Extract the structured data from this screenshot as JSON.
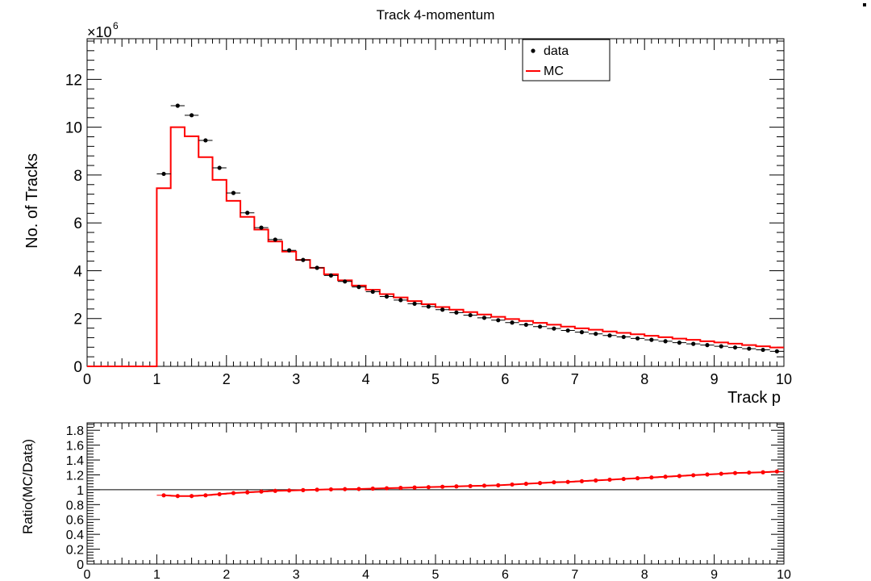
{
  "chart_data": [
    {
      "type": "histogram",
      "title": "Track 4-momentum",
      "xlabel": "Track p",
      "ylabel": "No. of Tracks",
      "y_multiplier_label": "×10",
      "y_multiplier_exponent": "6",
      "xlim": [
        0,
        10
      ],
      "ylim": [
        0,
        13.7
      ],
      "y_units": "millions",
      "x_ticks": [
        "0",
        "1",
        "2",
        "3",
        "4",
        "5",
        "6",
        "7",
        "8",
        "9",
        "10"
      ],
      "y_ticks": [
        "0",
        "2",
        "4",
        "6",
        "8",
        "10",
        "12"
      ],
      "y_tick_values": [
        0,
        2,
        4,
        6,
        8,
        10,
        12
      ],
      "legend": {
        "position": "top-right",
        "entries": [
          "data",
          "MC"
        ]
      },
      "bin_width": 0.2,
      "bin_edges_start": 0,
      "data": {
        "name": "data",
        "color": "#000000",
        "x": [
          1.1,
          1.3,
          1.5,
          1.7,
          1.9,
          2.1,
          2.3,
          2.5,
          2.7,
          2.9,
          3.1,
          3.3,
          3.5,
          3.7,
          3.9,
          4.1,
          4.3,
          4.5,
          4.7,
          4.9,
          5.1,
          5.3,
          5.5,
          5.7,
          5.9,
          6.1,
          6.3,
          6.5,
          6.7,
          6.9,
          7.1,
          7.3,
          7.5,
          7.7,
          7.9,
          8.1,
          8.3,
          8.5,
          8.7,
          8.9,
          9.1,
          9.3,
          9.5,
          9.7,
          9.9
        ],
        "y": [
          8.05,
          10.9,
          10.5,
          9.45,
          8.3,
          7.25,
          6.42,
          5.8,
          5.3,
          4.85,
          4.45,
          4.12,
          3.8,
          3.55,
          3.32,
          3.12,
          2.92,
          2.77,
          2.62,
          2.5,
          2.37,
          2.25,
          2.14,
          2.03,
          1.93,
          1.83,
          1.74,
          1.66,
          1.58,
          1.5,
          1.43,
          1.36,
          1.29,
          1.23,
          1.17,
          1.11,
          1.05,
          0.99,
          0.94,
          0.89,
          0.84,
          0.79,
          0.74,
          0.69,
          0.63
        ]
      },
      "mc": {
        "name": "MC",
        "color": "#ff0000",
        "values": [
          0,
          0,
          0,
          0,
          0,
          7.45,
          10.0,
          9.62,
          8.75,
          7.8,
          6.92,
          6.25,
          5.72,
          5.22,
          4.8,
          4.45,
          4.12,
          3.85,
          3.6,
          3.38,
          3.2,
          3.02,
          2.88,
          2.73,
          2.6,
          2.48,
          2.37,
          2.27,
          2.17,
          2.07,
          1.98,
          1.9,
          1.82,
          1.74,
          1.66,
          1.59,
          1.53,
          1.46,
          1.4,
          1.34,
          1.28,
          1.22,
          1.16,
          1.11,
          1.05,
          1.0,
          0.95,
          0.89,
          0.84,
          0.79
        ]
      }
    },
    {
      "type": "line",
      "ylabel": "Ratio(MC/Data)",
      "xlim": [
        0,
        10
      ],
      "ylim": [
        0,
        1.9
      ],
      "x_ticks": [
        "0",
        "1",
        "2",
        "3",
        "4",
        "5",
        "6",
        "7",
        "8",
        "9",
        "10"
      ],
      "y_ticks": [
        "0",
        "0.2",
        "0.4",
        "0.6",
        "0.8",
        "1",
        "1.2",
        "1.4",
        "1.6",
        "1.8"
      ],
      "y_tick_values": [
        0,
        0.2,
        0.4,
        0.6,
        0.8,
        1,
        1.2,
        1.4,
        1.6,
        1.8
      ],
      "reference_line": 1,
      "series": [
        {
          "color": "#ff0000",
          "x": [
            1.1,
            1.3,
            1.5,
            1.7,
            1.9,
            2.1,
            2.3,
            2.5,
            2.7,
            2.9,
            3.1,
            3.3,
            3.5,
            3.7,
            3.9,
            4.1,
            4.3,
            4.5,
            4.7,
            4.9,
            5.1,
            5.3,
            5.5,
            5.7,
            5.9,
            6.1,
            6.3,
            6.5,
            6.7,
            6.9,
            7.1,
            7.3,
            7.5,
            7.7,
            7.9,
            8.1,
            8.3,
            8.5,
            8.7,
            8.9,
            9.1,
            9.3,
            9.5,
            9.7,
            9.9
          ],
          "y": [
            0.925,
            0.915,
            0.915,
            0.925,
            0.94,
            0.955,
            0.965,
            0.975,
            0.985,
            0.99,
            0.995,
            1.0,
            1.005,
            1.008,
            1.01,
            1.015,
            1.02,
            1.025,
            1.03,
            1.035,
            1.04,
            1.045,
            1.05,
            1.055,
            1.06,
            1.07,
            1.08,
            1.09,
            1.1,
            1.105,
            1.115,
            1.125,
            1.135,
            1.145,
            1.155,
            1.165,
            1.175,
            1.185,
            1.195,
            1.205,
            1.215,
            1.225,
            1.23,
            1.235,
            1.245
          ]
        }
      ]
    }
  ]
}
